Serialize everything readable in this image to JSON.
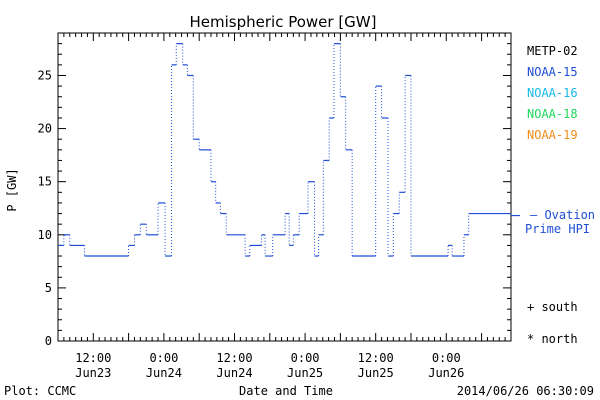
{
  "chart_data": {
    "type": "line",
    "title": "Hemispheric Power [GW]",
    "ylabel": "P [GW]",
    "xlabel": "Date and Time",
    "ylim": [
      0,
      29
    ],
    "xlim_hours": [
      0,
      77
    ],
    "yticks": [
      0,
      5,
      10,
      15,
      20,
      25
    ],
    "xticks": [
      {
        "h": 6,
        "time": "12:00",
        "date": "Jun23"
      },
      {
        "h": 18,
        "time": "0:00",
        "date": "Jun24"
      },
      {
        "h": 30,
        "time": "12:00",
        "date": "Jun24"
      },
      {
        "h": 42,
        "time": "0:00",
        "date": "Jun25"
      },
      {
        "h": 54,
        "time": "12:00",
        "date": "Jun25"
      },
      {
        "h": 66,
        "time": "0:00",
        "date": "Jun26"
      }
    ],
    "series": [
      {
        "name": "NOAA-15",
        "color": "#1f4fd6",
        "points": [
          [
            0,
            9
          ],
          [
            1,
            10
          ],
          [
            2,
            9
          ],
          [
            4.5,
            8
          ],
          [
            12,
            9
          ],
          [
            13,
            10
          ],
          [
            14,
            11
          ],
          [
            15,
            10
          ],
          [
            17,
            13
          ],
          [
            18.2,
            8
          ],
          [
            19.3,
            26
          ],
          [
            20.1,
            28
          ],
          [
            21.2,
            26
          ],
          [
            22,
            25
          ],
          [
            23,
            19
          ],
          [
            24,
            18
          ],
          [
            26,
            15
          ],
          [
            26.8,
            13
          ],
          [
            27.6,
            12
          ],
          [
            28.6,
            10
          ],
          [
            31.8,
            8
          ],
          [
            32.6,
            9
          ],
          [
            34.6,
            10
          ],
          [
            35.2,
            8
          ],
          [
            36.5,
            10
          ],
          [
            38.6,
            12
          ],
          [
            39.3,
            9
          ],
          [
            40,
            10
          ],
          [
            41,
            12
          ],
          [
            42.5,
            15
          ],
          [
            43.6,
            8
          ],
          [
            44.3,
            10
          ],
          [
            45.1,
            17
          ],
          [
            46.1,
            21
          ],
          [
            46.9,
            28
          ],
          [
            48,
            23
          ],
          [
            48.9,
            18
          ],
          [
            50,
            8
          ],
          [
            54,
            24
          ],
          [
            55,
            21
          ],
          [
            56.1,
            8
          ],
          [
            57,
            12
          ],
          [
            58,
            14
          ],
          [
            59,
            25
          ],
          [
            60,
            8
          ],
          [
            66.3,
            9
          ],
          [
            67,
            8
          ],
          [
            69,
            10
          ],
          [
            69.8,
            12
          ]
        ]
      }
    ],
    "legend": [
      {
        "name": "METP-02",
        "color": "#000000"
      },
      {
        "name": "NOAA-15",
        "color": "#1f4fd6"
      },
      {
        "name": "NOAA-16",
        "color": "#17b8e8"
      },
      {
        "name": "NOAA-18",
        "color": "#22d65a"
      },
      {
        "name": "NOAA-19",
        "color": "#f08c1a"
      }
    ],
    "ovation": {
      "label1": "— Ovation",
      "label2": "Prime HPI",
      "value": 12,
      "color": "#1f4fd6"
    },
    "markers": {
      "south": "+ south",
      "north": "* north"
    }
  },
  "footer": {
    "plot_credit": "Plot: CCMC",
    "xlabel": "Date and Time",
    "timestamp": "2014/06/26 06:30:09"
  }
}
